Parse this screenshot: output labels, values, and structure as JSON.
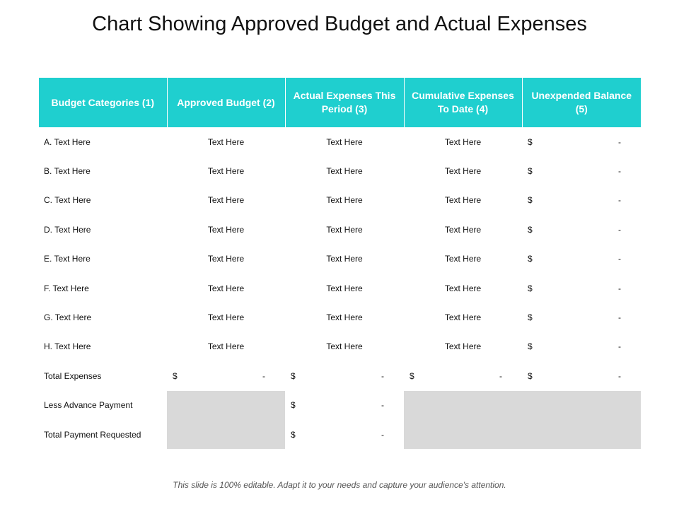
{
  "title": "Chart Showing Approved Budget and Actual Expenses",
  "headers": [
    "Budget Categories (1)",
    "Approved Budget (2)",
    "Actual Expenses This Period (3)",
    "Cumulative Expenses To Date (4)",
    "Unexpended Balance (5)"
  ],
  "rows": [
    {
      "category": "A. Text Here",
      "approved": "Text Here",
      "actual": "Text Here",
      "cumulative": "Text Here",
      "currency": "$",
      "balance": "-"
    },
    {
      "category": "B. Text Here",
      "approved": "Text Here",
      "actual": "Text Here",
      "cumulative": "Text Here",
      "currency": "$",
      "balance": "-"
    },
    {
      "category": "C. Text Here",
      "approved": "Text Here",
      "actual": "Text Here",
      "cumulative": "Text Here",
      "currency": "$",
      "balance": "-"
    },
    {
      "category": "D. Text Here",
      "approved": "Text Here",
      "actual": "Text Here",
      "cumulative": "Text Here",
      "currency": "$",
      "balance": "-"
    },
    {
      "category": "E. Text Here",
      "approved": "Text Here",
      "actual": "Text Here",
      "cumulative": "Text Here",
      "currency": "$",
      "balance": "-"
    },
    {
      "category": "F. Text Here",
      "approved": "Text Here",
      "actual": "Text Here",
      "cumulative": "Text Here",
      "currency": "$",
      "balance": "-"
    },
    {
      "category": "G. Text Here",
      "approved": "Text Here",
      "actual": "Text Here",
      "cumulative": "Text Here",
      "currency": "$",
      "balance": "-"
    },
    {
      "category": "H. Text Here",
      "approved": "Text Here",
      "actual": "Text Here",
      "cumulative": "Text Here",
      "currency": "$",
      "balance": "-"
    }
  ],
  "total_expenses": {
    "label": "Total Expenses",
    "approved": {
      "currency": "$",
      "value": "-"
    },
    "actual": {
      "currency": "$",
      "value": "-"
    },
    "cumulative": {
      "currency": "$",
      "value": "-"
    },
    "balance": {
      "currency": "$",
      "value": "-"
    }
  },
  "less_advance": {
    "label": "Less Advance Payment",
    "actual": {
      "currency": "$",
      "value": "-"
    }
  },
  "total_requested": {
    "label": "Total Payment Requested",
    "actual": {
      "currency": "$",
      "value": "-"
    }
  },
  "footer": "This slide is 100% editable. Adapt it to your needs and capture your audience's attention.",
  "colors": {
    "header_bg": "#1fcfcf",
    "shaded_cell": "#d9d9d9"
  }
}
